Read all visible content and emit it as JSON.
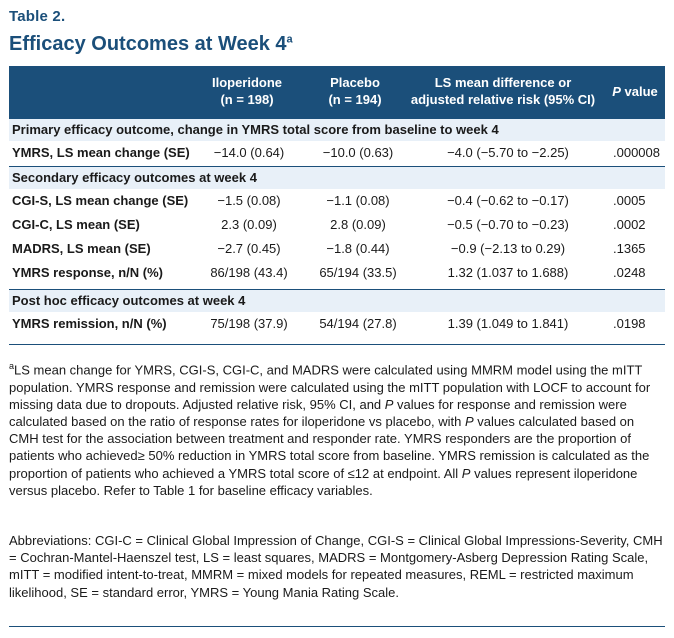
{
  "table_number": "Table 2.",
  "title": "Efficacy Outcomes at Week 4",
  "title_superscript": "a",
  "header": {
    "iloperidone_line1": "Iloperidone",
    "iloperidone_line2": "(n = 198)",
    "placebo_line1": "Placebo",
    "placebo_line2": "(n = 194)",
    "ls_line1": "LS mean difference or",
    "ls_line2": "adjusted relative risk (95% CI)",
    "p_italic": "P",
    "p_rest": " value"
  },
  "sections": [
    {
      "label": "Primary efficacy outcome, change in YMRS total score from baseline to week 4",
      "rows": [
        {
          "label": "YMRS, LS mean change (SE)",
          "iloperidone": "−14.0 (0.64)",
          "placebo": "−10.0 (0.63)",
          "diff": "−4.0 (−5.70 to −2.25)",
          "p": ".000008"
        }
      ]
    },
    {
      "label": "Secondary efficacy outcomes at week 4",
      "rows": [
        {
          "label": "CGI-S, LS mean change (SE)",
          "iloperidone": "−1.5 (0.08)",
          "placebo": "−1.1 (0.08)",
          "diff": "−0.4 (−0.62 to −0.17)",
          "p": ".0005"
        },
        {
          "label": "CGI-C, LS mean (SE)",
          "iloperidone": "2.3 (0.09)",
          "placebo": "2.8 (0.09)",
          "diff": "−0.5 (−0.70 to −0.23)",
          "p": ".0002"
        },
        {
          "label": "MADRS, LS mean (SE)",
          "iloperidone": "−2.7 (0.45)",
          "placebo": "−1.8 (0.44)",
          "diff": "−0.9 (−2.13 to 0.29)",
          "p": ".1365"
        },
        {
          "label": "YMRS response, n/N (%)",
          "iloperidone": "86/198 (43.4)",
          "placebo": "65/194 (33.5)",
          "diff": "1.32 (1.037 to 1.688)",
          "p": ".0248"
        }
      ]
    },
    {
      "label": "Post hoc efficacy outcomes at week 4",
      "rows": [
        {
          "label": "YMRS remission, n/N (%)",
          "iloperidone": "75/198 (37.9)",
          "placebo": "54/194 (27.8)",
          "diff": "1.39 (1.049 to 1.841)",
          "p": ".0198"
        }
      ]
    }
  ],
  "footnote": {
    "marker": "a",
    "part1": "LS mean change for YMRS, CGI-S, CGI-C, and MADRS were calculated using MMRM model using the mITT population. YMRS response and remission were calculated using the mITT population with LOCF to account for missing data due to dropouts. Adjusted relative risk, 95% CI, and ",
    "p1": "P",
    "part2": " values for response and remission were calculated based on the ratio of response rates for iloperidone vs placebo, with ",
    "p2": "P",
    "part3": " values calculated based on CMH test for the association between treatment and responder rate. YMRS responders are the proportion of patients who achieved≥ 50% reduction in YMRS total score from baseline. YMRS remission is calculated as the proportion of patients who achieved a YMRS total score of ≤12 at endpoint. All ",
    "p3": "P",
    "part4": " values represent iloperidone versus placebo. Refer to Table 1 for baseline efficacy variables."
  },
  "abbreviations": "Abbreviations: CGI-C = Clinical Global Impression of Change, CGI-S = Clinical Global Impressions-Severity,  CMH = Cochran-Mantel-Haenszel test, LS = least squares, MADRS = Montgomery-Asberg Depression Rating Scale, mITT = modified intent-to-treat, MMRM = mixed models for repeated measures, REML = restricted maximum likelihood, SE = standard error, YMRS = Young Mania Rating Scale.",
  "colors": {
    "accent": "#1b4f7a",
    "section_bg": "#e8f0f8"
  }
}
